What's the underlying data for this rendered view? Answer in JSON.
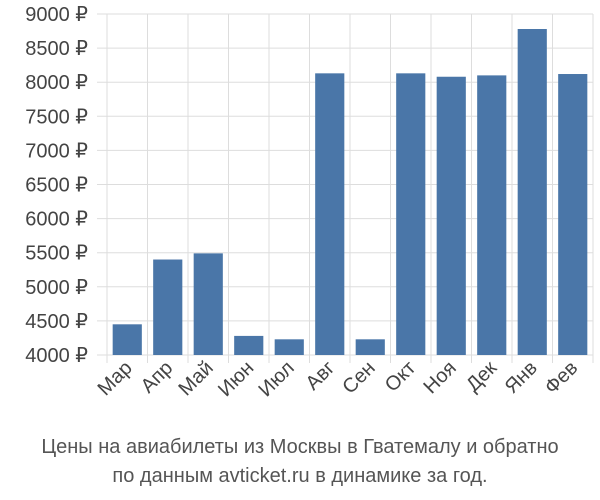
{
  "chart_data": {
    "type": "bar",
    "categories": [
      "Мар",
      "Апр",
      "Май",
      "Июн",
      "Июл",
      "Авг",
      "Сен",
      "Окт",
      "Ноя",
      "Дек",
      "Янв",
      "Фев"
    ],
    "values": [
      4450,
      5400,
      5490,
      4280,
      4230,
      8130,
      4230,
      8130,
      8080,
      8100,
      8780,
      8120
    ],
    "ylim": [
      4000,
      9000
    ],
    "yticks": [
      4000,
      4500,
      5000,
      5500,
      6000,
      6500,
      7000,
      7500,
      8000,
      8500,
      9000
    ],
    "ytick_labels": [
      "4000 ₽",
      "4500 ₽",
      "5000 ₽",
      "5500 ₽",
      "6000 ₽",
      "6500 ₽",
      "7000 ₽",
      "7500 ₽",
      "8000 ₽",
      "8500 ₽",
      "9000 ₽"
    ],
    "grid": true,
    "bar_color": "#4a76a8",
    "grid_color": "#dddddd",
    "caption": [
      "Цены на авиабилеты из Москвы в Гватемалу и обратно",
      "по данным avticket.ru в динамике за год."
    ]
  }
}
